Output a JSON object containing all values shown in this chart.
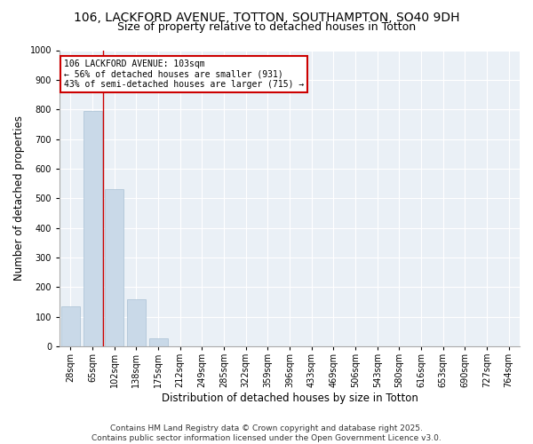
{
  "title_line1": "106, LACKFORD AVENUE, TOTTON, SOUTHAMPTON, SO40 9DH",
  "title_line2": "Size of property relative to detached houses in Totton",
  "xlabel": "Distribution of detached houses by size in Totton",
  "ylabel": "Number of detached properties",
  "bar_color": "#c9d9e8",
  "bar_edge_color": "#a8c0d4",
  "marker_line_color": "#cc0000",
  "annotation_box_color": "#cc0000",
  "background_color": "#eaf0f6",
  "categories": [
    "28sqm",
    "65sqm",
    "102sqm",
    "138sqm",
    "175sqm",
    "212sqm",
    "249sqm",
    "285sqm",
    "322sqm",
    "359sqm",
    "396sqm",
    "433sqm",
    "469sqm",
    "506sqm",
    "543sqm",
    "580sqm",
    "616sqm",
    "653sqm",
    "690sqm",
    "727sqm",
    "764sqm"
  ],
  "values": [
    135,
    795,
    530,
    160,
    28,
    0,
    0,
    0,
    0,
    0,
    0,
    0,
    0,
    0,
    0,
    0,
    0,
    0,
    0,
    0,
    0
  ],
  "marker_index": 2,
  "annotation_text": "106 LACKFORD AVENUE: 103sqm\n← 56% of detached houses are smaller (931)\n43% of semi-detached houses are larger (715) →",
  "ylim": [
    0,
    1000
  ],
  "yticks": [
    0,
    100,
    200,
    300,
    400,
    500,
    600,
    700,
    800,
    900,
    1000
  ],
  "footnote": "Contains HM Land Registry data © Crown copyright and database right 2025.\nContains public sector information licensed under the Open Government Licence v3.0.",
  "title_fontsize": 10,
  "subtitle_fontsize": 9,
  "axis_label_fontsize": 8.5,
  "tick_fontsize": 7,
  "annotation_fontsize": 7,
  "footnote_fontsize": 6.5
}
